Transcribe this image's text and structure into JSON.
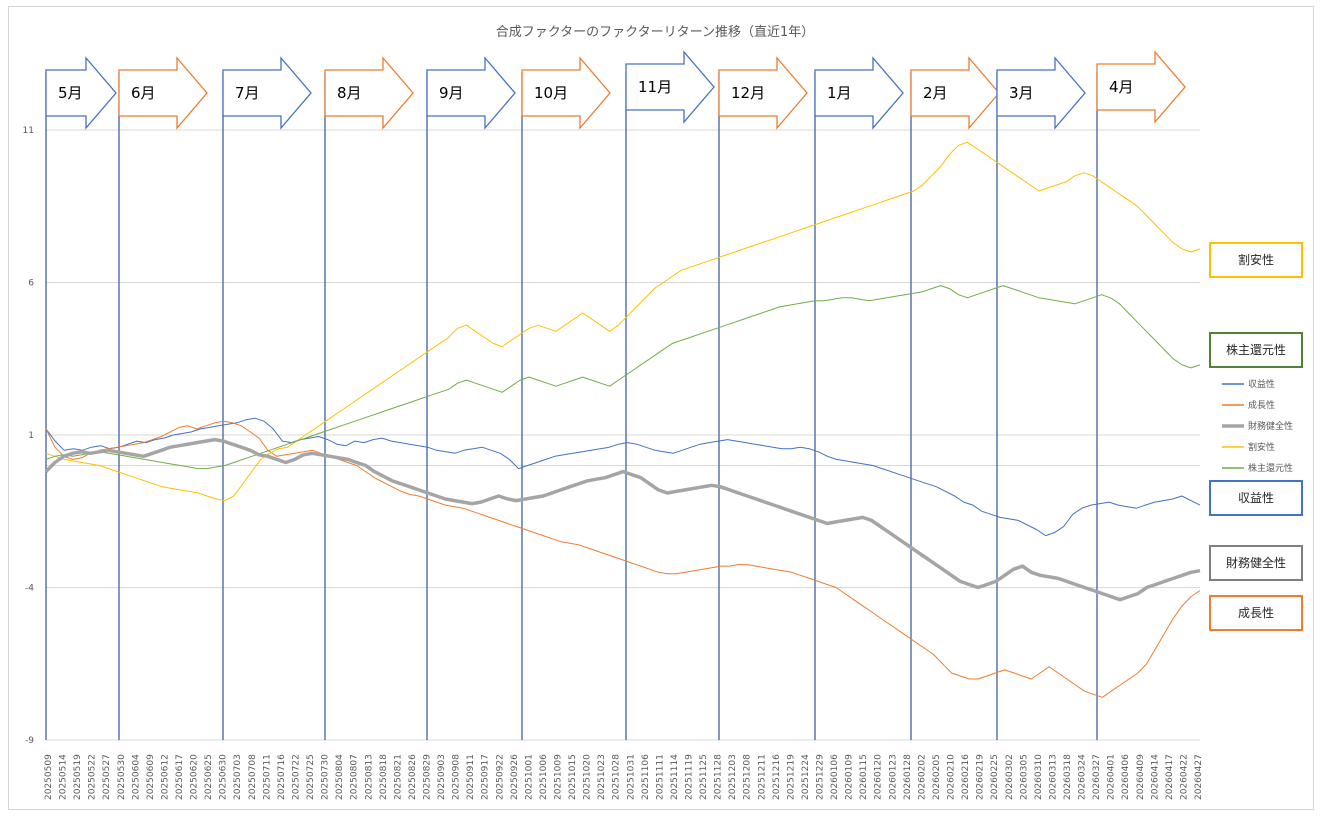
{
  "chart_data": {
    "type": "line",
    "title": "合成ファクターのファクターリターン推移（直近1年）",
    "ylim": [
      -9,
      11
    ],
    "yticks": [
      11,
      6,
      1,
      -4,
      -9
    ],
    "grid": true,
    "legend_position": "right",
    "series": [
      {
        "name": "収益性",
        "color": "#4472C4",
        "width": 1,
        "values": [
          1.2,
          0.8,
          0.5,
          0.55,
          0.5,
          0.6,
          0.65,
          0.55,
          0.6,
          0.7,
          0.8,
          0.75,
          0.85,
          0.9,
          1.0,
          1.05,
          1.1,
          1.2,
          1.25,
          1.3,
          1.35,
          1.4,
          1.5,
          1.55,
          1.45,
          1.2,
          0.8,
          0.75,
          0.85,
          0.9,
          0.95,
          0.85,
          0.7,
          0.65,
          0.8,
          0.75,
          0.85,
          0.9,
          0.8,
          0.75,
          0.7,
          0.65,
          0.6,
          0.5,
          0.45,
          0.4,
          0.5,
          0.55,
          0.6,
          0.5,
          0.4,
          0.2,
          -0.1,
          0.0,
          0.1,
          0.2,
          0.3,
          0.35,
          0.4,
          0.45,
          0.5,
          0.55,
          0.6,
          0.7,
          0.75,
          0.7,
          0.6,
          0.5,
          0.45,
          0.4,
          0.5,
          0.6,
          0.7,
          0.75,
          0.8,
          0.85,
          0.8,
          0.75,
          0.7,
          0.65,
          0.6,
          0.55,
          0.55,
          0.6,
          0.55,
          0.45,
          0.3,
          0.2,
          0.15,
          0.1,
          0.05,
          0.0,
          -0.1,
          -0.2,
          -0.3,
          -0.4,
          -0.5,
          -0.6,
          -0.7,
          -0.85,
          -1.0,
          -1.2,
          -1.3,
          -1.5,
          -1.6,
          -1.7,
          -1.75,
          -1.8,
          -1.95,
          -2.1,
          -2.3,
          -2.2,
          -2.0,
          -1.6,
          -1.4,
          -1.3,
          -1.25,
          -1.2,
          -1.3,
          -1.35,
          -1.4,
          -1.3,
          -1.2,
          -1.15,
          -1.1,
          -1.0,
          -1.15,
          -1.3
        ]
      },
      {
        "name": "成長性",
        "color": "#ED7D31",
        "width": 1,
        "values": [
          1.2,
          0.6,
          0.3,
          0.2,
          0.25,
          0.4,
          0.5,
          0.55,
          0.6,
          0.65,
          0.7,
          0.75,
          0.85,
          0.95,
          1.1,
          1.25,
          1.3,
          1.2,
          1.3,
          1.4,
          1.45,
          1.4,
          1.3,
          1.1,
          0.9,
          0.5,
          0.3,
          0.35,
          0.4,
          0.45,
          0.5,
          0.4,
          0.3,
          0.2,
          0.1,
          0.0,
          -0.2,
          -0.4,
          -0.55,
          -0.7,
          -0.85,
          -0.95,
          -1.0,
          -1.1,
          -1.2,
          -1.3,
          -1.35,
          -1.4,
          -1.5,
          -1.6,
          -1.7,
          -1.8,
          -1.9,
          -2.0,
          -2.1,
          -2.2,
          -2.3,
          -2.4,
          -2.5,
          -2.55,
          -2.6,
          -2.7,
          -2.8,
          -2.9,
          -3.0,
          -3.1,
          -3.2,
          -3.3,
          -3.4,
          -3.5,
          -3.55,
          -3.55,
          -3.5,
          -3.45,
          -3.4,
          -3.35,
          -3.3,
          -3.3,
          -3.25,
          -3.25,
          -3.3,
          -3.35,
          -3.4,
          -3.45,
          -3.5,
          -3.6,
          -3.7,
          -3.8,
          -3.9,
          -4.0,
          -4.2,
          -4.4,
          -4.6,
          -4.8,
          -5.0,
          -5.2,
          -5.4,
          -5.6,
          -5.8,
          -6.0,
          -6.2,
          -6.5,
          -6.8,
          -6.9,
          -7.0,
          -7.0,
          -6.9,
          -6.8,
          -6.7,
          -6.8,
          -6.9,
          -7.0,
          -6.8,
          -6.6,
          -6.8,
          -7.0,
          -7.2,
          -7.4,
          -7.5,
          -7.6,
          -7.4,
          -7.2,
          -7.0,
          -6.8,
          -6.5,
          -6.0,
          -5.5,
          -5.0,
          -4.6,
          -4.3,
          -4.1
        ]
      },
      {
        "name": "財務健全性",
        "color": "#A5A5A5",
        "width": 3.5,
        "values": [
          -0.2,
          0.1,
          0.3,
          0.4,
          0.45,
          0.4,
          0.45,
          0.5,
          0.45,
          0.4,
          0.35,
          0.3,
          0.4,
          0.5,
          0.6,
          0.65,
          0.7,
          0.75,
          0.8,
          0.85,
          0.8,
          0.7,
          0.6,
          0.5,
          0.35,
          0.3,
          0.2,
          0.1,
          0.2,
          0.35,
          0.4,
          0.35,
          0.3,
          0.25,
          0.2,
          0.1,
          0.0,
          -0.2,
          -0.35,
          -0.5,
          -0.6,
          -0.7,
          -0.8,
          -0.9,
          -1.0,
          -1.1,
          -1.15,
          -1.2,
          -1.25,
          -1.2,
          -1.1,
          -1.0,
          -1.1,
          -1.15,
          -1.1,
          -1.05,
          -1.0,
          -0.9,
          -0.8,
          -0.7,
          -0.6,
          -0.5,
          -0.45,
          -0.4,
          -0.3,
          -0.2,
          -0.3,
          -0.4,
          -0.6,
          -0.8,
          -0.9,
          -0.85,
          -0.8,
          -0.75,
          -0.7,
          -0.65,
          -0.7,
          -0.8,
          -0.9,
          -1.0,
          -1.1,
          -1.2,
          -1.3,
          -1.4,
          -1.5,
          -1.6,
          -1.7,
          -1.8,
          -1.9,
          -1.85,
          -1.8,
          -1.75,
          -1.7,
          -1.8,
          -2.0,
          -2.2,
          -2.4,
          -2.6,
          -2.8,
          -3.0,
          -3.2,
          -3.4,
          -3.6,
          -3.8,
          -3.9,
          -4.0,
          -3.9,
          -3.8,
          -3.6,
          -3.4,
          -3.3,
          -3.5,
          -3.6,
          -3.65,
          -3.7,
          -3.8,
          -3.9,
          -4.0,
          -4.1,
          -4.2,
          -4.3,
          -4.4,
          -4.3,
          -4.2,
          -4.0,
          -3.9,
          -3.8,
          -3.7,
          -3.6,
          -3.5,
          -3.45
        ]
      },
      {
        "name": "割安性",
        "color": "#FFC000",
        "width": 1,
        "values": [
          0.4,
          0.3,
          0.2,
          0.15,
          0.1,
          0.05,
          0.0,
          -0.1,
          -0.2,
          -0.3,
          -0.4,
          -0.5,
          -0.6,
          -0.7,
          -0.75,
          -0.8,
          -0.85,
          -0.9,
          -1.0,
          -1.1,
          -1.15,
          -1.0,
          -0.6,
          -0.2,
          0.2,
          0.4,
          0.55,
          0.6,
          0.8,
          1.0,
          1.2,
          1.4,
          1.6,
          1.8,
          2.0,
          2.2,
          2.4,
          2.6,
          2.8,
          3.0,
          3.2,
          3.4,
          3.6,
          3.8,
          4.0,
          4.2,
          4.5,
          4.6,
          4.4,
          4.2,
          4.0,
          3.9,
          4.1,
          4.3,
          4.5,
          4.6,
          4.5,
          4.4,
          4.6,
          4.8,
          5.0,
          4.8,
          4.6,
          4.4,
          4.6,
          4.9,
          5.2,
          5.5,
          5.8,
          6.0,
          6.2,
          6.4,
          6.5,
          6.6,
          6.7,
          6.8,
          6.9,
          7.0,
          7.1,
          7.2,
          7.3,
          7.4,
          7.5,
          7.6,
          7.7,
          7.8,
          7.9,
          8.0,
          8.1,
          8.2,
          8.3,
          8.4,
          8.5,
          8.6,
          8.7,
          8.8,
          8.9,
          9.0,
          9.2,
          9.5,
          9.8,
          10.2,
          10.5,
          10.6,
          10.4,
          10.2,
          10.0,
          9.8,
          9.6,
          9.4,
          9.2,
          9.0,
          9.1,
          9.2,
          9.3,
          9.5,
          9.6,
          9.5,
          9.3,
          9.1,
          8.9,
          8.7,
          8.5,
          8.2,
          7.9,
          7.6,
          7.3,
          7.1,
          7.0,
          7.1
        ]
      },
      {
        "name": "株主還元性",
        "color": "#70AD47",
        "width": 1,
        "values": [
          0.2,
          0.3,
          0.35,
          0.3,
          0.35,
          0.4,
          0.45,
          0.4,
          0.35,
          0.3,
          0.25,
          0.2,
          0.15,
          0.1,
          0.05,
          0.0,
          -0.05,
          -0.1,
          -0.1,
          -0.05,
          0.0,
          0.1,
          0.2,
          0.3,
          0.4,
          0.5,
          0.6,
          0.7,
          0.8,
          0.9,
          1.0,
          1.1,
          1.2,
          1.3,
          1.4,
          1.5,
          1.6,
          1.7,
          1.8,
          1.9,
          2.0,
          2.1,
          2.2,
          2.3,
          2.4,
          2.5,
          2.7,
          2.8,
          2.7,
          2.6,
          2.5,
          2.4,
          2.6,
          2.8,
          2.9,
          2.8,
          2.7,
          2.6,
          2.7,
          2.8,
          2.9,
          2.8,
          2.7,
          2.6,
          2.8,
          3.0,
          3.2,
          3.4,
          3.6,
          3.8,
          4.0,
          4.1,
          4.2,
          4.3,
          4.4,
          4.5,
          4.6,
          4.7,
          4.8,
          4.9,
          5.0,
          5.1,
          5.2,
          5.25,
          5.3,
          5.35,
          5.4,
          5.4,
          5.45,
          5.5,
          5.5,
          5.45,
          5.4,
          5.45,
          5.5,
          5.55,
          5.6,
          5.65,
          5.7,
          5.8,
          5.9,
          5.8,
          5.6,
          5.5,
          5.6,
          5.7,
          5.8,
          5.9,
          5.8,
          5.7,
          5.6,
          5.5,
          5.45,
          5.4,
          5.35,
          5.3,
          5.4,
          5.5,
          5.6,
          5.5,
          5.3,
          5.0,
          4.7,
          4.4,
          4.1,
          3.8,
          3.5,
          3.3,
          3.2,
          3.3
        ]
      }
    ],
    "x_labels": [
      "20250509",
      "20250514",
      "20250519",
      "20250522",
      "20250527",
      "20250530",
      "20250604",
      "20250609",
      "20250612",
      "20250617",
      "20250620",
      "20250625",
      "20250630",
      "20250703",
      "20250708",
      "20250711",
      "20250716",
      "20250722",
      "20250725",
      "20250730",
      "20250804",
      "20250807",
      "20250813",
      "20250818",
      "20250821",
      "20250826",
      "20250829",
      "20250903",
      "20250908",
      "20250911",
      "20250917",
      "20250922",
      "20250926",
      "20251001",
      "20251006",
      "20251009",
      "20251015",
      "20251020",
      "20251023",
      "20251028",
      "20251031",
      "20251106",
      "20251111",
      "20251114",
      "20251119",
      "20251125",
      "20251128",
      "20251203",
      "20251208",
      "20251211",
      "20251216",
      "20251219",
      "20251224",
      "20251229",
      "20260106",
      "20260109",
      "20260115",
      "20260120",
      "20260123",
      "20260128",
      "20260202",
      "20260205",
      "20260210",
      "20260216",
      "20260219",
      "20260225",
      "20260302",
      "20260305",
      "20260310",
      "20260313",
      "20260318",
      "20260324",
      "20260327",
      "20260401",
      "20260406",
      "20260409",
      "20260414",
      "20260417",
      "20260422",
      "20260427"
    ],
    "months": [
      "5月",
      "6月",
      "7月",
      "8月",
      "9月",
      "10月",
      "11月",
      "12月",
      "1月",
      "2月",
      "3月",
      "4月"
    ],
    "month_colors": [
      "#4472C4",
      "#ED7D31",
      "#4472C4",
      "#ED7D31",
      "#4472C4",
      "#ED7D31",
      "#4472C4",
      "#ED7D31",
      "#4472C4",
      "#ED7D31",
      "#4472C4",
      "#ED7D31"
    ],
    "legend": [
      "収益性",
      "成長性",
      "財務健全性",
      "割安性",
      "株主還元性"
    ],
    "callouts": [
      {
        "label": "割安性",
        "color": "#FFC000"
      },
      {
        "label": "株主還元性",
        "color": "#548235"
      },
      {
        "label": "収益性",
        "color": "#4472C4"
      },
      {
        "label": "財務健全性",
        "color": "#7F7F7F"
      },
      {
        "label": "成長性",
        "color": "#ED7D31"
      }
    ]
  }
}
